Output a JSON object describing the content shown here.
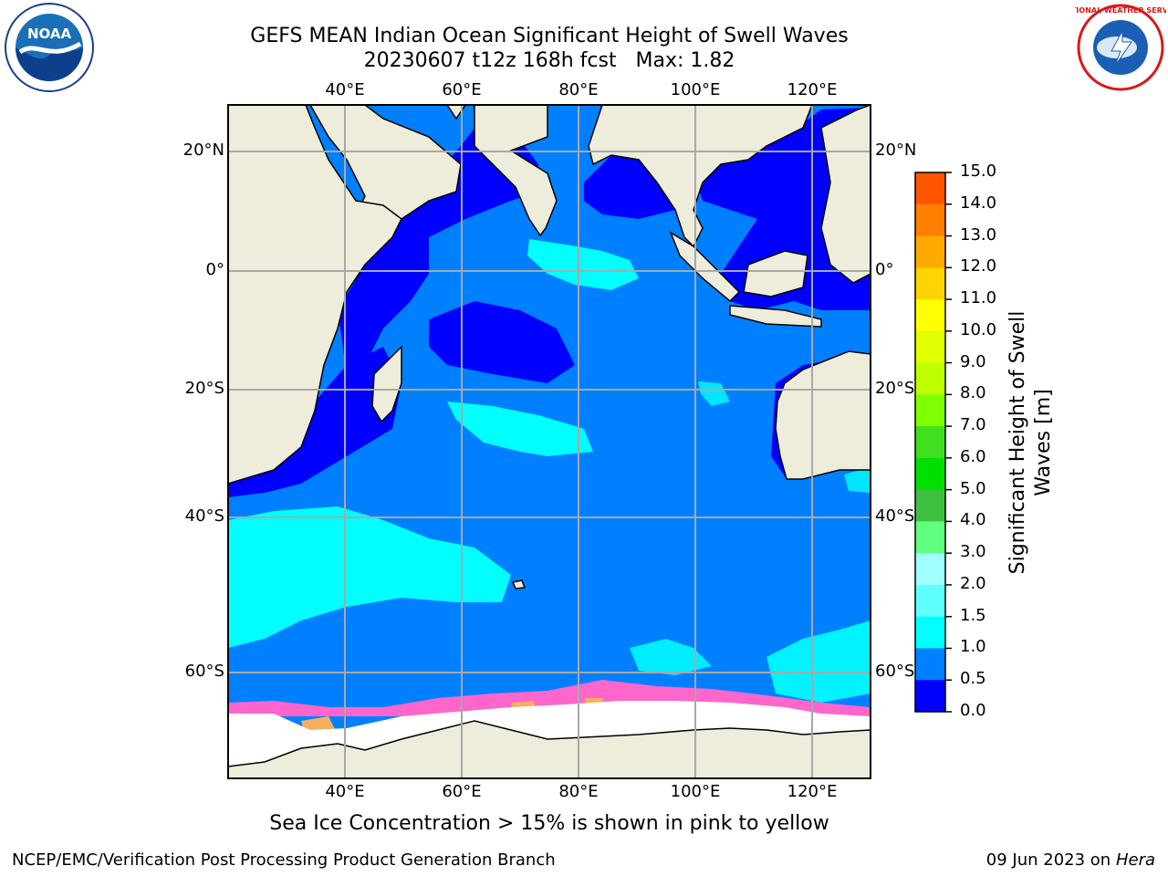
{
  "title": {
    "line1": "GEFS MEAN Indian Ocean Significant Height of Swell Waves",
    "line2": "20230607 t12z 168h fcst   Max: 1.82"
  },
  "map": {
    "lon_ticks": [
      "40°E",
      "60°E",
      "80°E",
      "100°E",
      "120°E"
    ],
    "lat_ticks": [
      "20°N",
      "0°",
      "20°S",
      "40°S",
      "60°S"
    ],
    "lon_values": [
      40,
      60,
      80,
      100,
      120
    ],
    "lat_values": [
      20,
      0,
      -20,
      -40,
      -60
    ],
    "lon_range": [
      20,
      130
    ],
    "lat_range": [
      -72,
      27
    ],
    "land_color": "#eeecda",
    "ocean_base_color": "#0080ff"
  },
  "colorbar": {
    "label": "Significant Height of Swell Waves [m]",
    "label_line1": "Significant Height of Swell",
    "label_line2": "Waves [m]",
    "ticks": [
      "15.0",
      "14.0",
      "13.0",
      "12.0",
      "11.0",
      "10.0",
      "9.0",
      "8.0",
      "7.0",
      "6.0",
      "5.0",
      "4.0",
      "3.0",
      "2.0",
      "1.5",
      "1.0",
      "0.5",
      "0.0"
    ],
    "colors_top_to_bottom": [
      "#ff0000",
      "#ff2a00",
      "#ff5500",
      "#ff7f00",
      "#ffaa00",
      "#ffd400",
      "#ffff00",
      "#e0ff00",
      "#c0ff00",
      "#80ff00",
      "#40e020",
      "#00e000",
      "#40c040",
      "#60ff80",
      "#a0ffff",
      "#60ffff",
      "#00ffff",
      "#0080ff",
      "#0000ff"
    ]
  },
  "note": "Sea Ice Concentration > 15% is shown in pink to yellow",
  "footer": {
    "left": "NCEP/EMC/Verification Post Processing Product Generation Branch",
    "right_date": "09 Jun 2023 on",
    "right_machine": "Hera"
  },
  "logos": {
    "noaa_text": "NOAA",
    "nws_text": "NATIONAL WEATHER SERVICE"
  }
}
